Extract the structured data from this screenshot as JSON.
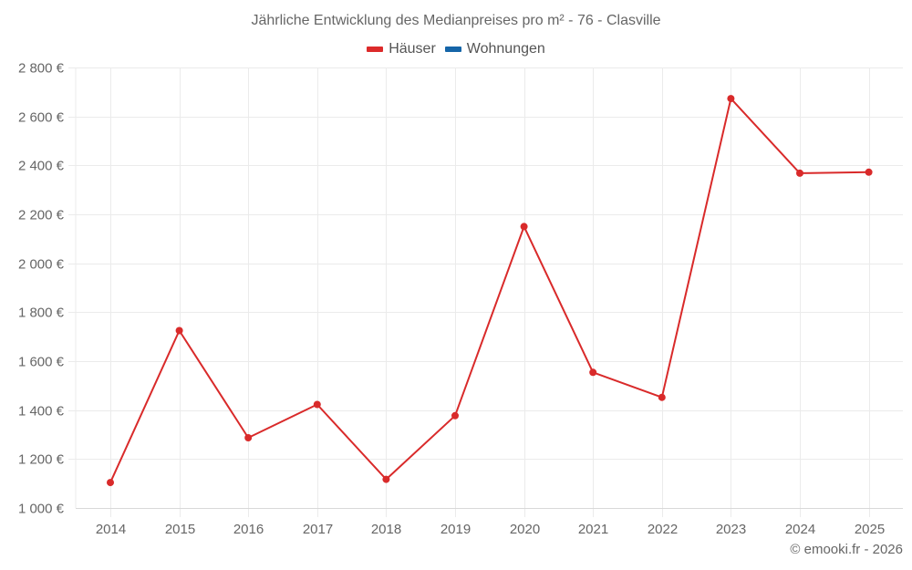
{
  "header": {
    "title": "Jährliche Entwicklung des Medianpreises pro m² - 76 - Clasville"
  },
  "legend": [
    {
      "label": "Häuser",
      "color": "#dc2a2a"
    },
    {
      "label": "Wohnungen",
      "color": "#1565a8"
    }
  ],
  "credits": "© emooki.fr - 2026",
  "colors": {
    "houses_line": "#d92a2a",
    "grid": "#ebebeb",
    "axis": "#d8d8d8",
    "text": "#666666"
  },
  "chart_data": {
    "type": "line",
    "title": "Jährliche Entwicklung des Medianpreises pro m² - 76 - Clasville",
    "xlabel": "",
    "ylabel": "",
    "categories": [
      "2014",
      "2015",
      "2016",
      "2017",
      "2018",
      "2019",
      "2020",
      "2021",
      "2022",
      "2023",
      "2024",
      "2025"
    ],
    "series": [
      {
        "name": "Häuser",
        "color": "#dc2a2a",
        "values": [
          1104,
          1725,
          1287,
          1423,
          1117,
          1377,
          2150,
          1554,
          1452,
          2673,
          2368,
          2372
        ]
      },
      {
        "name": "Wohnungen",
        "color": "#1565a8",
        "values": []
      }
    ],
    "ylim": [
      1000,
      2800
    ],
    "yticks": [
      1000,
      1200,
      1400,
      1600,
      1800,
      2000,
      2200,
      2400,
      2600,
      2800
    ],
    "ytick_labels": [
      "1 000 €",
      "1 200 €",
      "1 400 €",
      "1 600 €",
      "1 800 €",
      "2 000 €",
      "2 200 €",
      "2 400 €",
      "2 600 €",
      "2 800 €"
    ],
    "grid": true,
    "legend_position": "top-center"
  }
}
